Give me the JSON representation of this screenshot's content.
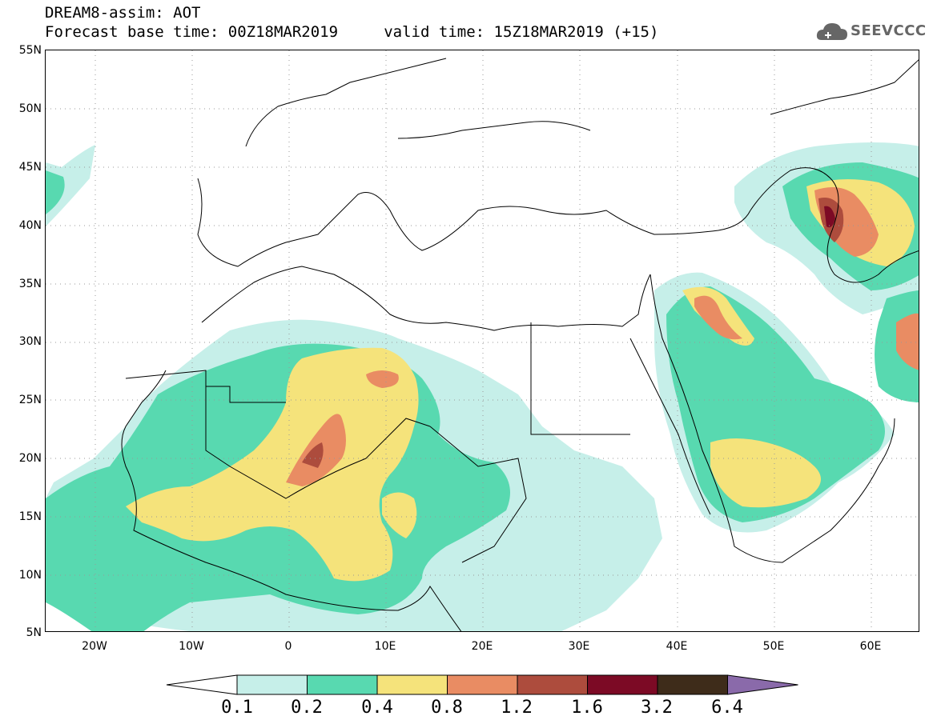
{
  "title": {
    "line1": "DREAM8-assim: AOT",
    "line2": "Forecast base time: 00Z18MAR2019     valid time: 15Z18MAR2019 (+15)"
  },
  "logo": {
    "text": "SEEVCCC",
    "icon": "cloud-icon"
  },
  "map": {
    "lat_labels": [
      "55N",
      "50N",
      "45N",
      "40N",
      "35N",
      "30N",
      "25N",
      "20N",
      "15N",
      "10N",
      "5N"
    ],
    "lon_labels": [
      "20W",
      "10W",
      "0",
      "10E",
      "20E",
      "30E",
      "40E",
      "50E",
      "60E"
    ],
    "grid": "dotted"
  },
  "colorbar": {
    "labels": [
      "0.1",
      "0.2",
      "0.4",
      "0.8",
      "1.2",
      "1.6",
      "3.2",
      "6.4"
    ],
    "colors": [
      "#ffffff",
      "#c6efe9",
      "#58d9b0",
      "#f5e37b",
      "#e98c63",
      "#ad4c3d",
      "#7c0a25",
      "#3e2c1a",
      "#8a6aaa"
    ]
  },
  "levels": {
    "c1": "#c6efe9",
    "c2": "#58d9b0",
    "c3": "#f5e37b",
    "c4": "#e98c63",
    "c5": "#ad4c3d",
    "c6": "#7c0a25"
  }
}
